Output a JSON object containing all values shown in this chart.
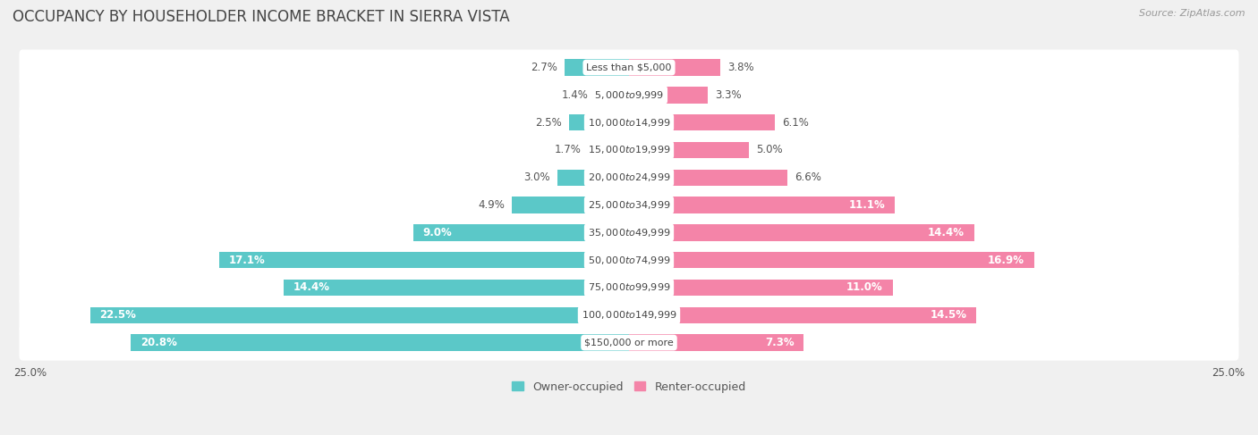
{
  "title": "OCCUPANCY BY HOUSEHOLDER INCOME BRACKET IN SIERRA VISTA",
  "source": "Source: ZipAtlas.com",
  "categories": [
    "Less than $5,000",
    "$5,000 to $9,999",
    "$10,000 to $14,999",
    "$15,000 to $19,999",
    "$20,000 to $24,999",
    "$25,000 to $34,999",
    "$35,000 to $49,999",
    "$50,000 to $74,999",
    "$75,000 to $99,999",
    "$100,000 to $149,999",
    "$150,000 or more"
  ],
  "owner_values": [
    2.7,
    1.4,
    2.5,
    1.7,
    3.0,
    4.9,
    9.0,
    17.1,
    14.4,
    22.5,
    20.8
  ],
  "renter_values": [
    3.8,
    3.3,
    6.1,
    5.0,
    6.6,
    11.1,
    14.4,
    16.9,
    11.0,
    14.5,
    7.3
  ],
  "owner_color": "#5bc8c8",
  "renter_color": "#f484a8",
  "background_color": "#f0f0f0",
  "bar_background": "#ffffff",
  "row_edge_color": "#dddddd",
  "xlim": 25.0,
  "bar_height": 0.6,
  "title_fontsize": 12,
  "label_fontsize": 8.5,
  "category_fontsize": 8,
  "legend_fontsize": 9,
  "source_fontsize": 8,
  "owner_label_threshold": 7.0,
  "renter_label_threshold": 7.0
}
